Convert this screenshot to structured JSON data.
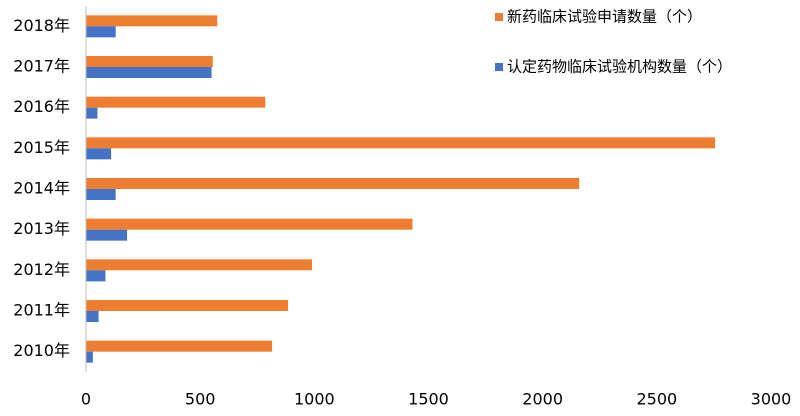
{
  "chart_data": {
    "type": "hbar",
    "categories": [
      "2018年",
      "2017年",
      "2016年",
      "2015年",
      "2014年",
      "2013年",
      "2012年",
      "2011年",
      "2010年"
    ],
    "series": [
      {
        "name": "新药临床试验申请数量（个）",
        "color": "#ed7d31",
        "values": [
          575,
          555,
          785,
          2755,
          2160,
          1430,
          990,
          885,
          815
        ]
      },
      {
        "name": "认定药物临床试验机构数量（个）",
        "color": "#4472c4",
        "values": [
          130,
          550,
          50,
          110,
          130,
          180,
          85,
          55,
          30
        ]
      }
    ],
    "xlim": [
      0,
      3000
    ],
    "xticks": [
      0,
      500,
      1000,
      1500,
      2000,
      2500,
      3000
    ],
    "grid": false,
    "legend": "top-right"
  }
}
